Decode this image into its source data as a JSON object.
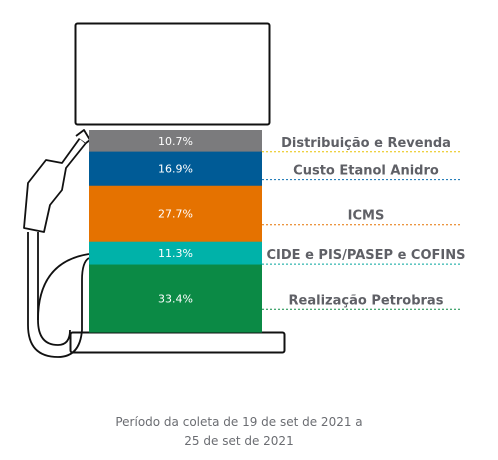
{
  "chart_data": {
    "type": "bar",
    "stacked": true,
    "unit": "%",
    "segments": [
      {
        "label": "Distribuição e Revenda",
        "value": 10.7,
        "display": "10.7%",
        "color": "#7b7b7d",
        "line_color": "#e8c200"
      },
      {
        "label": "Custo Etanol Anidro",
        "value": 16.9,
        "display": "16.9%",
        "color": "#005b96",
        "line_color": "#0b6fb0"
      },
      {
        "label": "ICMS",
        "value": 27.7,
        "display": "27.7%",
        "color": "#e57200",
        "line_color": "#e57200"
      },
      {
        "label": "CIDE e PIS/PASEP e COFINS",
        "value": 11.3,
        "display": "11.3%",
        "color": "#00b2a9",
        "line_color": "#00a59c"
      },
      {
        "label": "Realização Petrobras",
        "value": 33.4,
        "display": "33.4%",
        "color": "#0b8a45",
        "line_color": "#0b8a45"
      }
    ]
  },
  "footnote": {
    "line1": "Período da coleta de 19 de set de 2021 a",
    "line2": "25 de set de 2021"
  }
}
